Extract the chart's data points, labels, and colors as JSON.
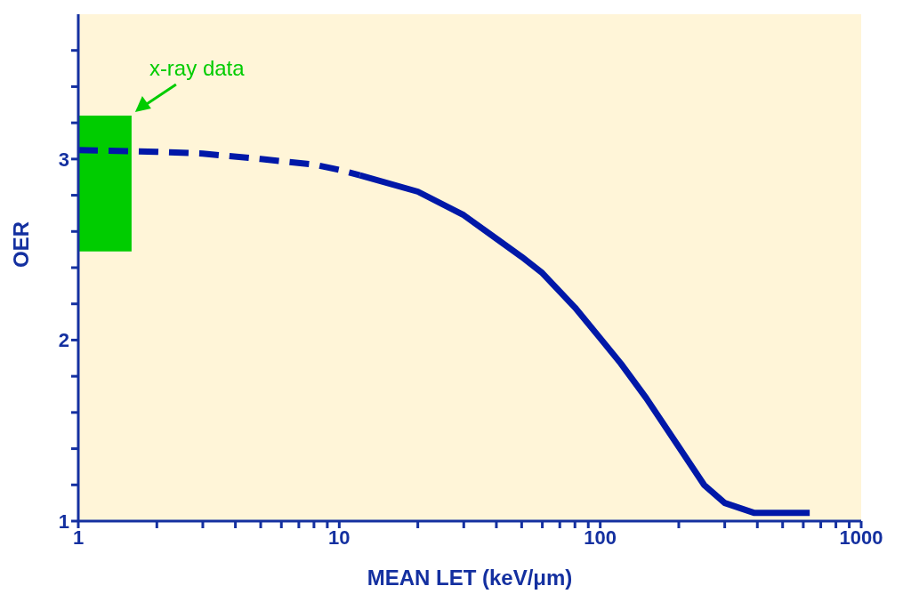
{
  "chart_data": {
    "type": "line",
    "xlabel": "MEAN LET (keV/μm)",
    "ylabel": "OER",
    "log": "x",
    "marker": "none",
    "xlim": [
      1,
      1000
    ],
    "ylim": [
      1,
      3.8
    ],
    "xticks": [
      1,
      {
        "value": 2,
        "label": null
      },
      {
        "value": 3,
        "label": null
      },
      {
        "value": 4,
        "label": null
      },
      {
        "value": 5,
        "label": null
      },
      {
        "value": 6,
        "label": null
      },
      {
        "value": 7,
        "label": null
      },
      {
        "value": 8,
        "label": null
      },
      {
        "value": 9,
        "label": null
      },
      10,
      {
        "value": 20,
        "label": null
      },
      {
        "value": 30,
        "label": null
      },
      {
        "value": 40,
        "label": null
      },
      {
        "value": 50,
        "label": null
      },
      {
        "value": 60,
        "label": null
      },
      {
        "value": 70,
        "label": null
      },
      {
        "value": 80,
        "label": null
      },
      {
        "value": 90,
        "label": null
      },
      100,
      {
        "value": 200,
        "label": null
      },
      {
        "value": 300,
        "label": null
      },
      {
        "value": 400,
        "label": null
      },
      {
        "value": 500,
        "label": null
      },
      {
        "value": 600,
        "label": null
      },
      {
        "value": 700,
        "label": null
      },
      {
        "value": 800,
        "label": null
      },
      {
        "value": 900,
        "label": null
      },
      1000
    ],
    "yticks": [
      1,
      {
        "value": 1.2,
        "label": null
      },
      {
        "value": 1.4,
        "label": null
      },
      {
        "value": 1.6,
        "label": null
      },
      {
        "value": 1.8,
        "label": null
      },
      2,
      {
        "value": 2.2,
        "label": null
      },
      {
        "value": 2.4,
        "label": null
      },
      {
        "value": 2.6,
        "label": null
      },
      {
        "value": 2.8,
        "label": null
      },
      3,
      {
        "value": 3.2,
        "label": null
      },
      {
        "value": 3.4,
        "label": null
      },
      {
        "value": 3.6,
        "label": null
      }
    ],
    "series": [
      {
        "color": "#00cc00",
        "x": [
          1,
          1.6
        ],
        "values": [
          null,
          null
        ],
        "lower": [
          2.49,
          2.49
        ],
        "upper": [
          3.24,
          3.24
        ]
      },
      {
        "color": "#0018a8",
        "line_style": "dashed",
        "x": [
          1,
          2,
          3,
          5,
          8,
          10,
          12
        ],
        "values": [
          3.05,
          3.04,
          3.03,
          3.0,
          2.97,
          2.94,
          2.91
        ]
      },
      {
        "color": "#0018a8",
        "line_style": "solid",
        "x": [
          12,
          20,
          30,
          40,
          50,
          60,
          80,
          100,
          120,
          150,
          200,
          250,
          300,
          390,
          635
        ],
        "values": [
          2.91,
          2.82,
          2.69,
          2.56,
          2.46,
          2.37,
          2.18,
          2.01,
          1.87,
          1.68,
          1.41,
          1.2,
          1.1,
          1.045,
          1.045
        ]
      }
    ],
    "annotations": [
      {
        "text": "x-ray data",
        "x": 1.6,
        "y": 3.24
      }
    ]
  }
}
